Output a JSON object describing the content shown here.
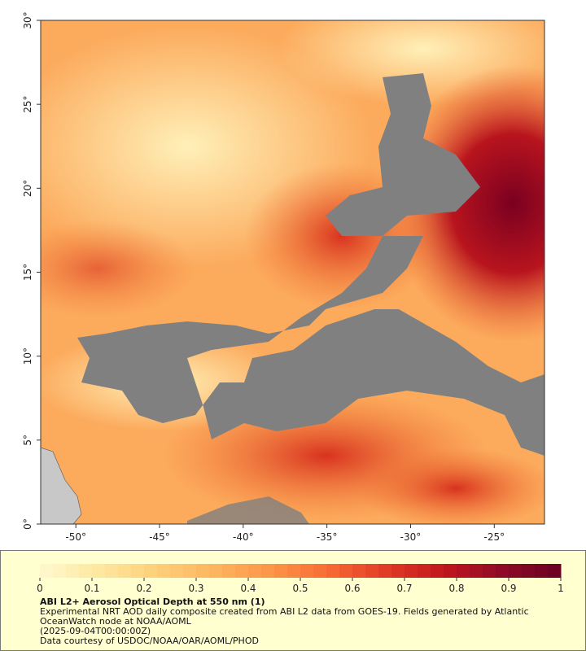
{
  "chart_data": {
    "type": "map",
    "xlim": [
      -52.1,
      -22
    ],
    "ylim": [
      0,
      30
    ],
    "xticks": [
      {
        "value": -50,
        "label": "-50°"
      },
      {
        "value": -45,
        "label": "-45°"
      },
      {
        "value": -40,
        "label": "-40°"
      },
      {
        "value": -35,
        "label": "-35°"
      },
      {
        "value": -30,
        "label": "-30°"
      },
      {
        "value": -25,
        "label": "-25°"
      }
    ],
    "yticks": [
      {
        "value": 0,
        "label": "0°"
      },
      {
        "value": 5,
        "label": "5°"
      },
      {
        "value": 10,
        "label": "10°"
      },
      {
        "value": 15,
        "label": "15°"
      },
      {
        "value": 20,
        "label": "20°"
      },
      {
        "value": 25,
        "label": "25°"
      },
      {
        "value": 30,
        "label": "30°"
      }
    ],
    "colorbar": {
      "lim": [
        0,
        1
      ],
      "ticks": [
        0,
        0.1,
        0.2,
        0.3,
        0.4,
        0.5,
        0.6,
        0.7,
        0.8,
        0.9,
        1
      ],
      "colors": [
        "#fff8d0",
        "#fee8a0",
        "#fed07a",
        "#fdb560",
        "#fc9448",
        "#f76a34",
        "#e03a24",
        "#c0161e",
        "#8e0a28",
        "#6a0022"
      ]
    },
    "title": "ABI L2+ Aerosol Optical Depth at 550 nm (1)",
    "description": [
      "Experimental NRT AOD daily composite created from ABI L2 data from GOES-19. Fields generated by Atlantic OceanWatch node at NOAA/AOML",
      "(2025-09-04T00:00:00Z)",
      "Data courtesy of USDOC/NOAA/OAR/AOML/PHOD"
    ]
  }
}
